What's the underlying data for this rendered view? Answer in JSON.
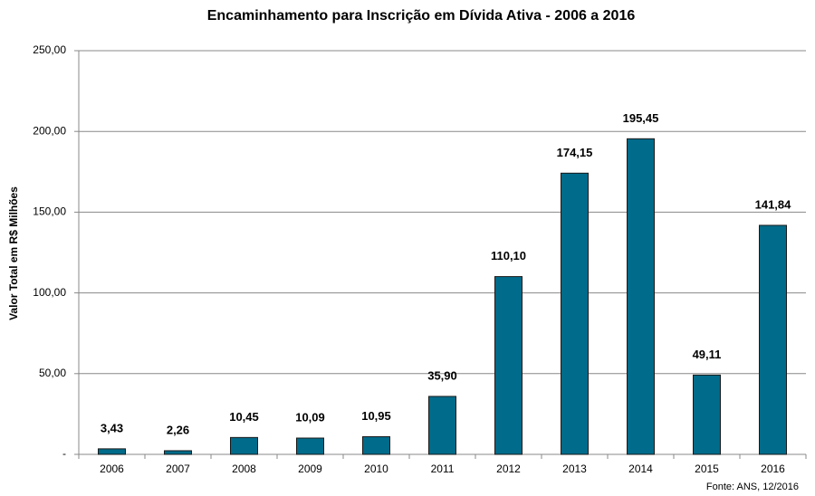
{
  "chart_data": {
    "type": "bar",
    "title": "Encaminhamento para Inscrição em Dívida Ativa - 2006 a 2016",
    "y_label": "Valor Total em R$ Milhões",
    "source": "Fonte: ANS, 12/2016",
    "categories": [
      "2006",
      "2007",
      "2008",
      "2009",
      "2010",
      "2011",
      "2012",
      "2013",
      "2014",
      "2015",
      "2016"
    ],
    "values": [
      3.43,
      2.26,
      10.45,
      10.09,
      10.95,
      35.9,
      110.1,
      174.15,
      195.45,
      49.11,
      141.84
    ],
    "value_labels": [
      "3,43",
      "2,26",
      "10,45",
      "10,09",
      "10,95",
      "35,90",
      "110,10",
      "174,15",
      "195,45",
      "49,11",
      "141,84"
    ],
    "color": "#006b8a",
    "ylim": [
      0,
      250
    ],
    "yticks": [
      {
        "value": 0,
        "label": "-"
      },
      {
        "value": 50,
        "label": "50,00"
      },
      {
        "value": 100,
        "label": "100,00"
      },
      {
        "value": 150,
        "label": "150,00"
      },
      {
        "value": 200,
        "label": "200,00"
      },
      {
        "value": 250,
        "label": "250,00"
      }
    ],
    "grid": true
  }
}
